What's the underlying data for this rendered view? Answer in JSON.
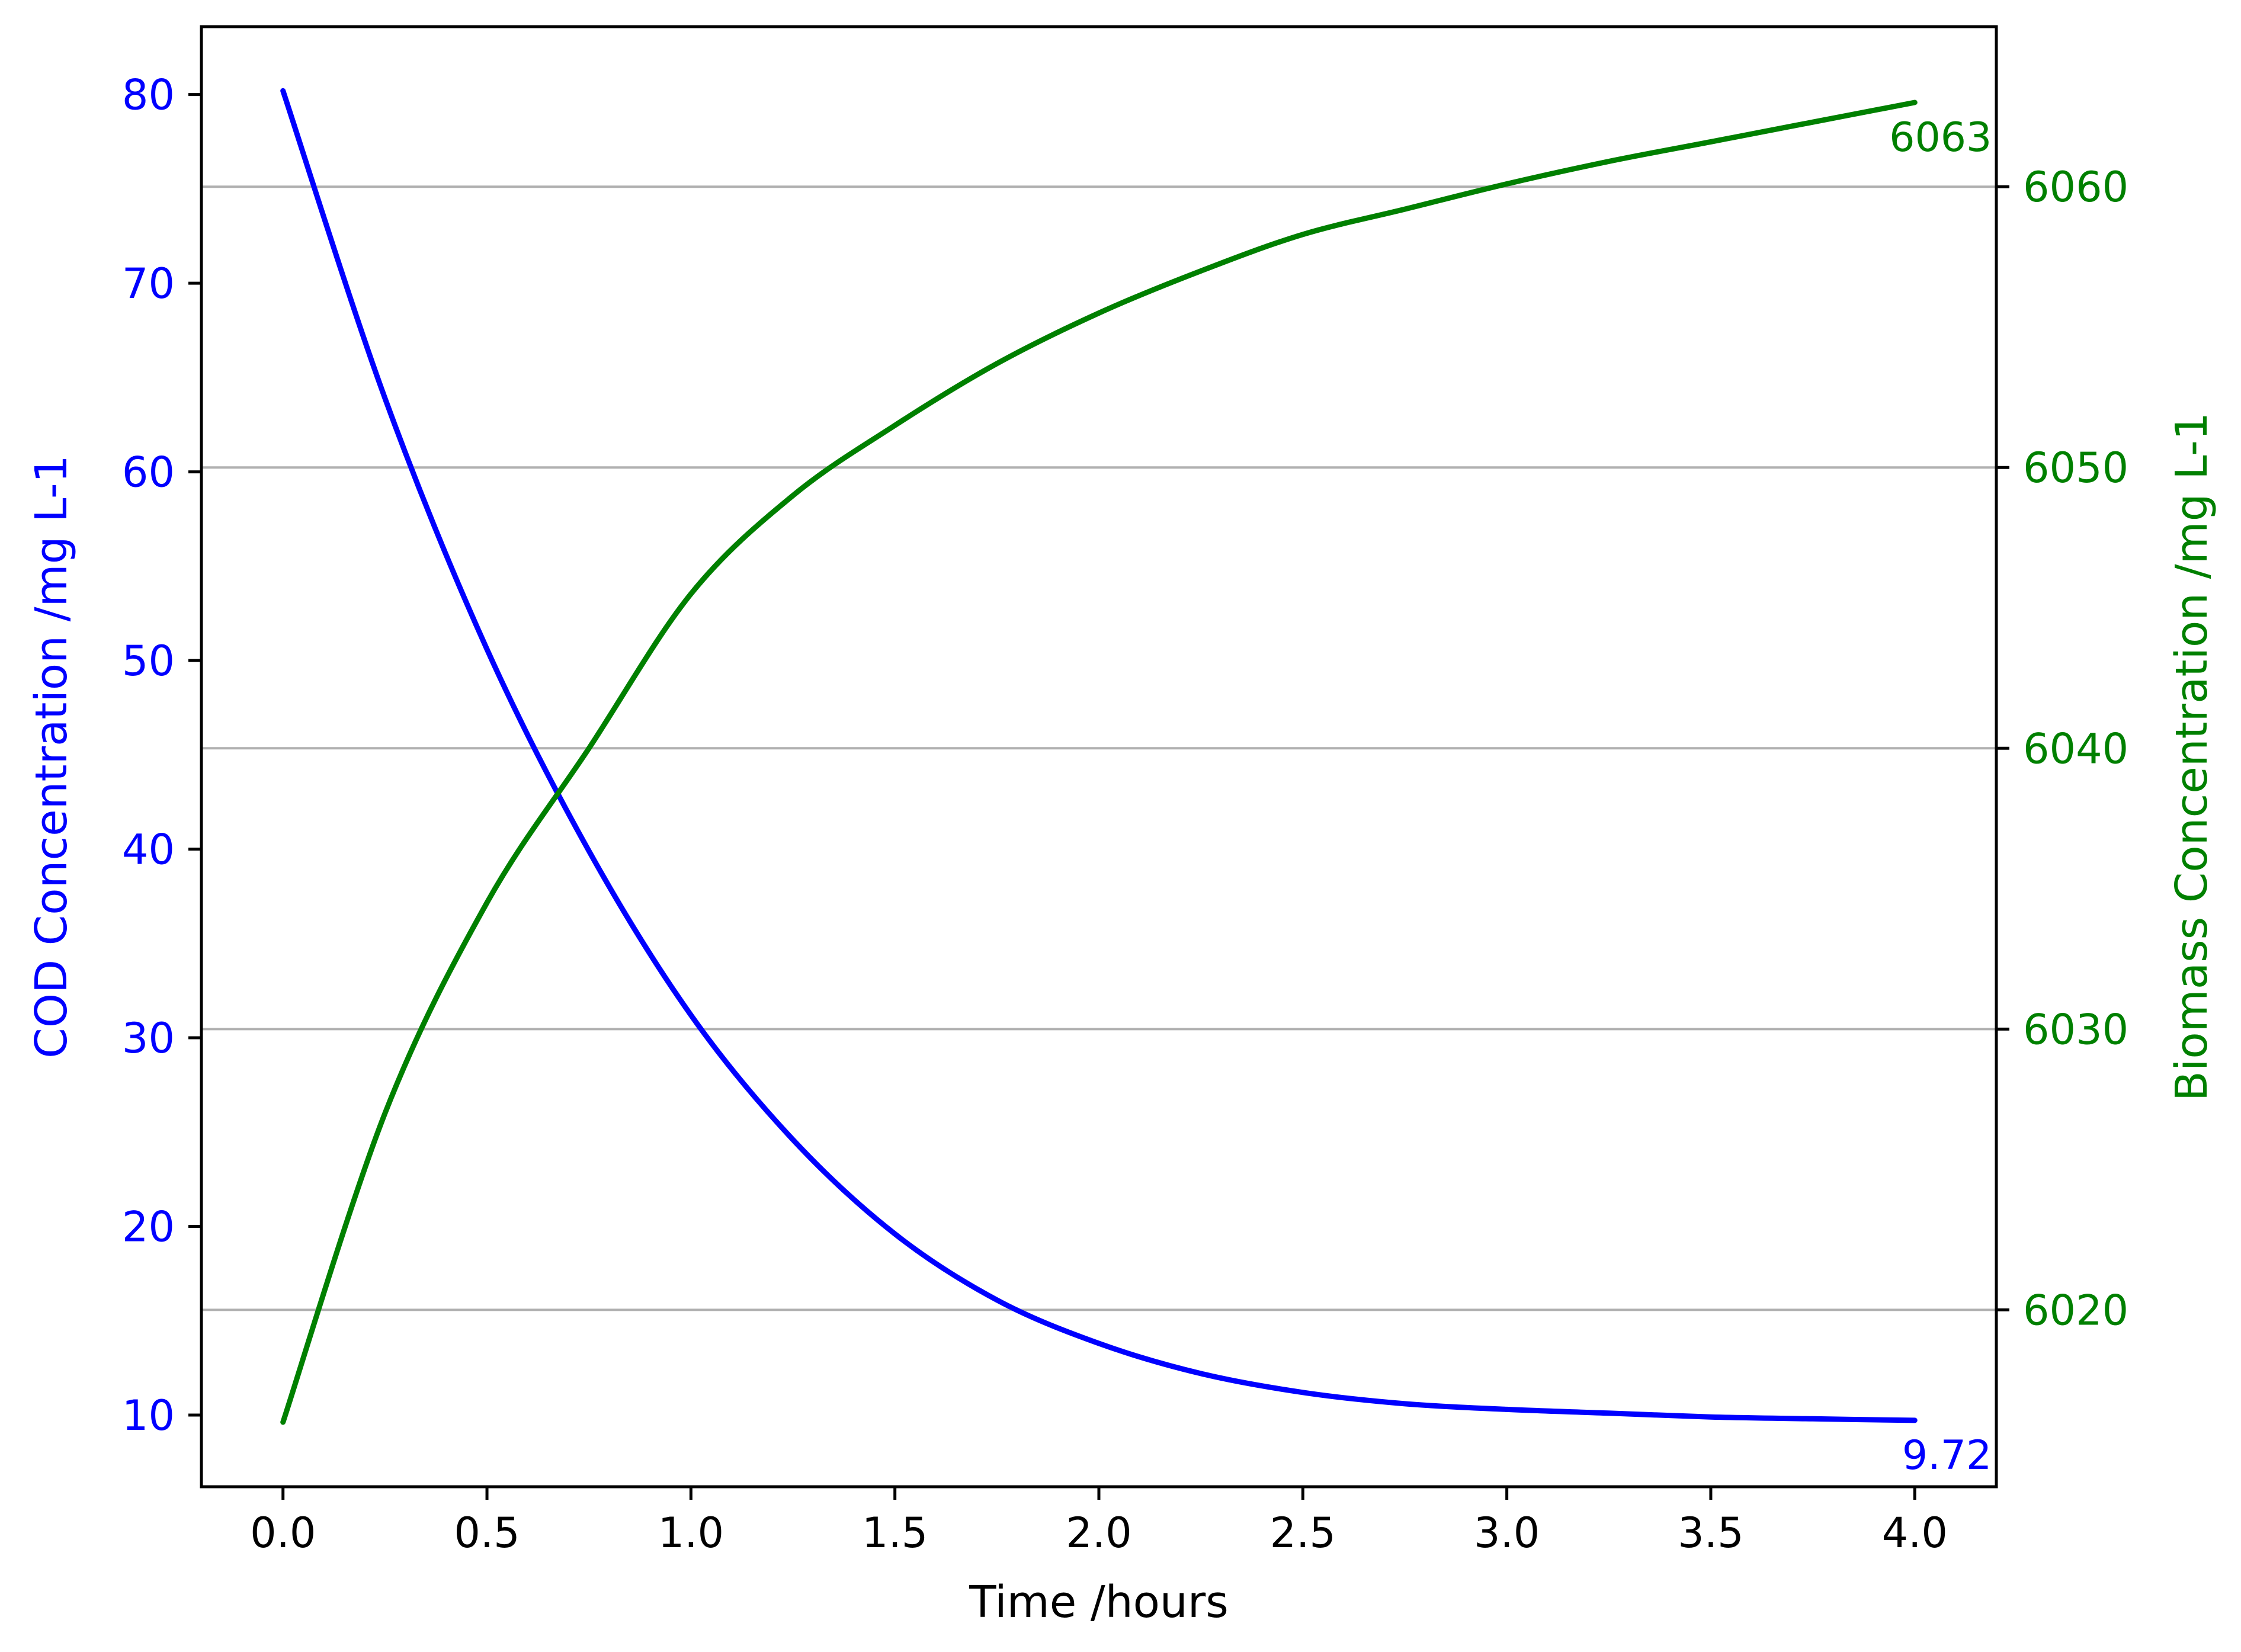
{
  "chart_data": {
    "type": "line",
    "xlabel": "Time /hours",
    "xlim": [
      -0.2,
      4.2
    ],
    "x_ticks": [
      "0.0",
      "0.5",
      "1.0",
      "1.5",
      "2.0",
      "2.5",
      "3.0",
      "3.5",
      "4.0"
    ],
    "grid": "horizontal (left axis)",
    "y_left": {
      "label": "COD Concentration /mg L-1",
      "color": "#0000ff",
      "ylim": [
        6.2,
        83.6
      ],
      "ticks": [
        "10",
        "20",
        "30",
        "40",
        "50",
        "60",
        "70",
        "80"
      ]
    },
    "y_right": {
      "label": "Biomass Concentration /mg L-1",
      "color": "#008000",
      "ylim": [
        6013.7,
        6065.7
      ],
      "ticks": [
        "6020",
        "6030",
        "6040",
        "6050",
        "6060"
      ]
    },
    "x": [
      0.0,
      0.25,
      0.5,
      0.75,
      1.0,
      1.25,
      1.5,
      1.75,
      2.0,
      2.25,
      2.5,
      2.75,
      3.0,
      3.25,
      3.5,
      3.75,
      4.0
    ],
    "series": [
      {
        "axis": "left",
        "color": "#0000ff",
        "values": [
          80.2,
          63.9,
          50.6,
          39.9,
          31.2,
          24.6,
          19.6,
          16.1,
          13.8,
          12.2,
          11.2,
          10.6,
          10.3,
          10.1,
          9.9,
          9.8,
          9.72
        ]
      },
      {
        "axis": "right",
        "color": "#008000",
        "values": [
          6016.0,
          6027.0,
          6034.5,
          6040.0,
          6045.5,
          6049.0,
          6051.5,
          6053.7,
          6055.5,
          6057.0,
          6058.3,
          6059.2,
          6060.1,
          6060.9,
          6061.6,
          6062.3,
          6063.0
        ]
      }
    ],
    "annotations": [
      {
        "text": "9.72",
        "series": 0,
        "at_x": 4.0,
        "color": "#0000ff"
      },
      {
        "text": "6063",
        "series": 1,
        "at_x": 4.0,
        "color": "#008000"
      }
    ]
  }
}
